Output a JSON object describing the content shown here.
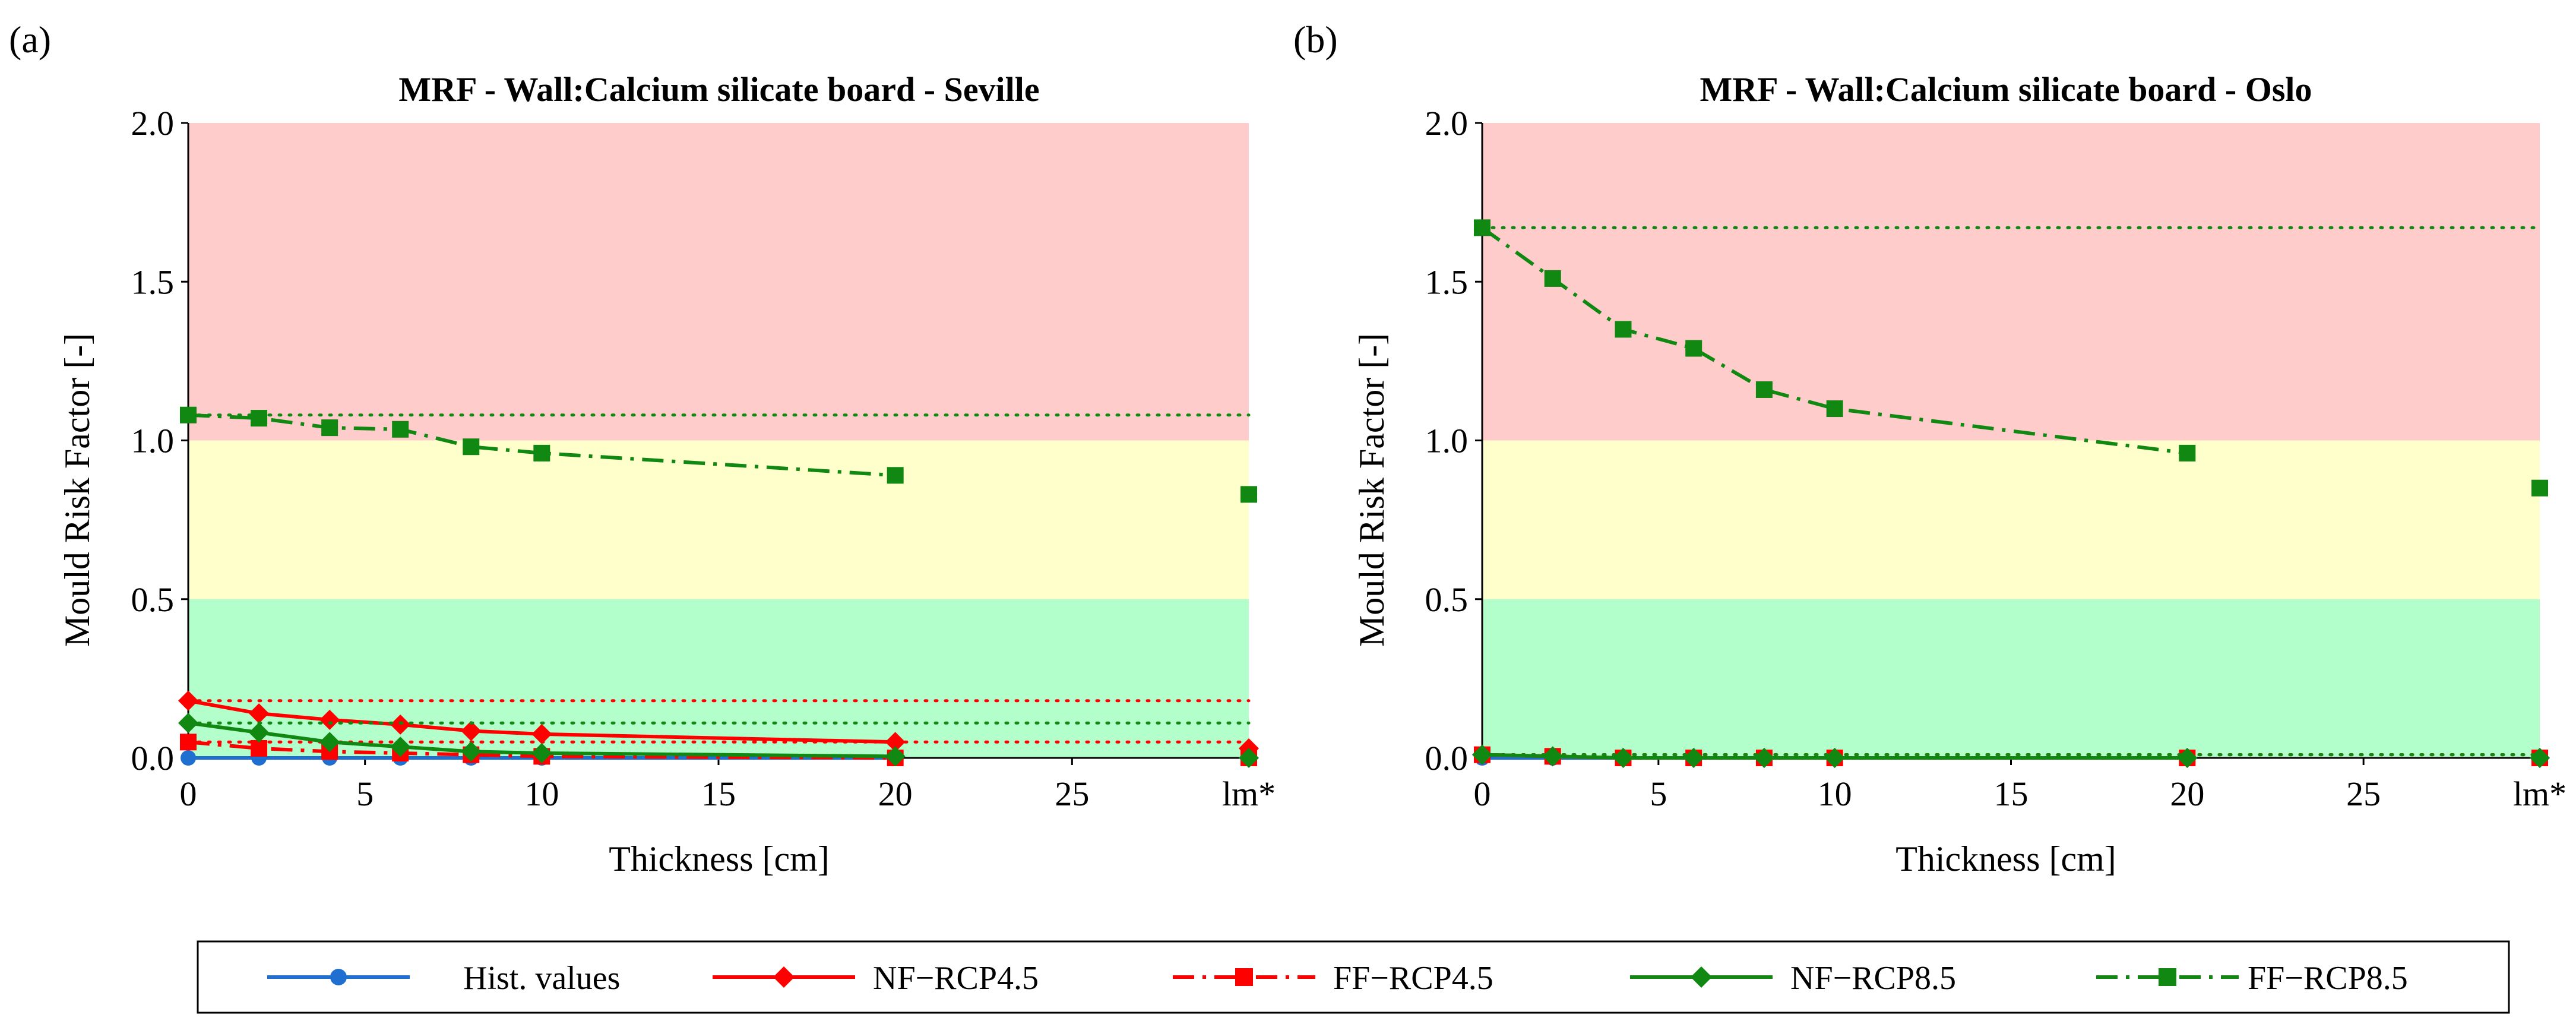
{
  "chart_data": [
    {
      "panel_label": "(a)",
      "type": "line",
      "title": "MRF - Wall:Calcium silicate board - Seville",
      "xlabel": "Thickness [cm]",
      "ylabel": "Mould Risk Factor [-]",
      "ylim": [
        0,
        2
      ],
      "xlim": [
        0,
        30
      ],
      "x_ticks": [
        "0",
        "5",
        "10",
        "15",
        "20",
        "25",
        "lm*"
      ],
      "y_ticks": [
        "0.0",
        "0.5",
        "1.0",
        "1.5",
        "2.0"
      ],
      "x": [
        0,
        2,
        4,
        6,
        8,
        10,
        20
      ],
      "lm_position": 30,
      "bands": [
        {
          "from": 0,
          "to": 0.5,
          "color": "#b3ffcc"
        },
        {
          "from": 0.5,
          "to": 1.0,
          "color": "#ffffcc"
        },
        {
          "from": 1.0,
          "to": 2.0,
          "color": "#ffcccc"
        }
      ],
      "series": [
        {
          "name": "Hist. values",
          "color": "#1f6fd1",
          "dash": "solid",
          "marker": "circle",
          "values": [
            0.0,
            0.0,
            0.0,
            0.0,
            0.0,
            0.0,
            0.0
          ],
          "lm": 0.0,
          "baseline": 0.0
        },
        {
          "name": "NF−RCP4.5",
          "color": "#ff0000",
          "dash": "solid",
          "marker": "diamond",
          "values": [
            0.18,
            0.14,
            0.12,
            0.105,
            0.085,
            0.075,
            0.05
          ],
          "lm": 0.03,
          "baseline": 0.18
        },
        {
          "name": "FF−RCP4.5",
          "color": "#ff0000",
          "dash": "dashdot",
          "marker": "square",
          "values": [
            0.05,
            0.03,
            0.02,
            0.015,
            0.01,
            0.005,
            0.0
          ],
          "lm": 0.0,
          "baseline": 0.05
        },
        {
          "name": "NF−RCP8.5",
          "color": "#118811",
          "dash": "solid",
          "marker": "diamond",
          "values": [
            0.11,
            0.08,
            0.05,
            0.035,
            0.02,
            0.015,
            0.005
          ],
          "lm": 0.0,
          "baseline": 0.11
        },
        {
          "name": "FF−RCP8.5",
          "color": "#118811",
          "dash": "dashdot",
          "marker": "square",
          "values": [
            1.08,
            1.07,
            1.04,
            1.035,
            0.98,
            0.96,
            0.89
          ],
          "lm": 0.83,
          "baseline": 1.08
        }
      ]
    },
    {
      "panel_label": "(b)",
      "type": "line",
      "title": "MRF - Wall:Calcium silicate board - Oslo",
      "xlabel": "Thickness [cm]",
      "ylabel": "Mould Risk Factor [-]",
      "ylim": [
        0,
        2
      ],
      "xlim": [
        0,
        30
      ],
      "x_ticks": [
        "0",
        "5",
        "10",
        "15",
        "20",
        "25",
        "lm*"
      ],
      "y_ticks": [
        "0.0",
        "0.5",
        "1.0",
        "1.5",
        "2.0"
      ],
      "x": [
        0,
        2,
        4,
        6,
        8,
        10,
        20
      ],
      "lm_position": 30,
      "bands": [
        {
          "from": 0,
          "to": 0.5,
          "color": "#b3ffcc"
        },
        {
          "from": 0.5,
          "to": 1.0,
          "color": "#ffffcc"
        },
        {
          "from": 1.0,
          "to": 2.0,
          "color": "#ffcccc"
        }
      ],
      "series": [
        {
          "name": "Hist. values",
          "color": "#1f6fd1",
          "dash": "solid",
          "marker": "circle",
          "values": [
            0.0,
            0.0,
            0.0,
            0.0,
            0.0,
            0.0,
            0.0
          ],
          "lm": 0.0,
          "baseline": 0.0
        },
        {
          "name": "NF−RCP4.5",
          "color": "#ff0000",
          "dash": "solid",
          "marker": "diamond",
          "values": [
            0.01,
            0.005,
            0.0,
            0.0,
            0.0,
            0.0,
            0.0
          ],
          "lm": 0.0,
          "baseline": 0.01
        },
        {
          "name": "FF−RCP4.5",
          "color": "#ff0000",
          "dash": "dashdot",
          "marker": "square",
          "values": [
            0.01,
            0.005,
            0.0,
            0.0,
            0.0,
            0.0,
            0.0
          ],
          "lm": 0.0,
          "baseline": 0.01
        },
        {
          "name": "NF−RCP8.5",
          "color": "#118811",
          "dash": "solid",
          "marker": "diamond",
          "values": [
            0.01,
            0.005,
            0.0,
            0.0,
            0.0,
            0.0,
            0.0
          ],
          "lm": 0.0,
          "baseline": 0.01
        },
        {
          "name": "FF−RCP8.5",
          "color": "#118811",
          "dash": "dashdot",
          "marker": "square",
          "values": [
            1.67,
            1.51,
            1.35,
            1.29,
            1.16,
            1.1,
            0.96
          ],
          "lm": 0.85,
          "baseline": 1.67
        }
      ]
    }
  ],
  "legend": {
    "placement": "bottom-center",
    "items": [
      {
        "label": "Hist. values",
        "color": "#1f6fd1",
        "dash": "solid",
        "marker": "circle"
      },
      {
        "label": "NF−RCP4.5",
        "color": "#ff0000",
        "dash": "solid",
        "marker": "diamond"
      },
      {
        "label": "FF−RCP4.5",
        "color": "#ff0000",
        "dash": "dashdot",
        "marker": "square"
      },
      {
        "label": "NF−RCP8.5",
        "color": "#118811",
        "dash": "solid",
        "marker": "diamond"
      },
      {
        "label": "FF−RCP8.5",
        "color": "#118811",
        "dash": "dashdot",
        "marker": "square"
      }
    ]
  }
}
